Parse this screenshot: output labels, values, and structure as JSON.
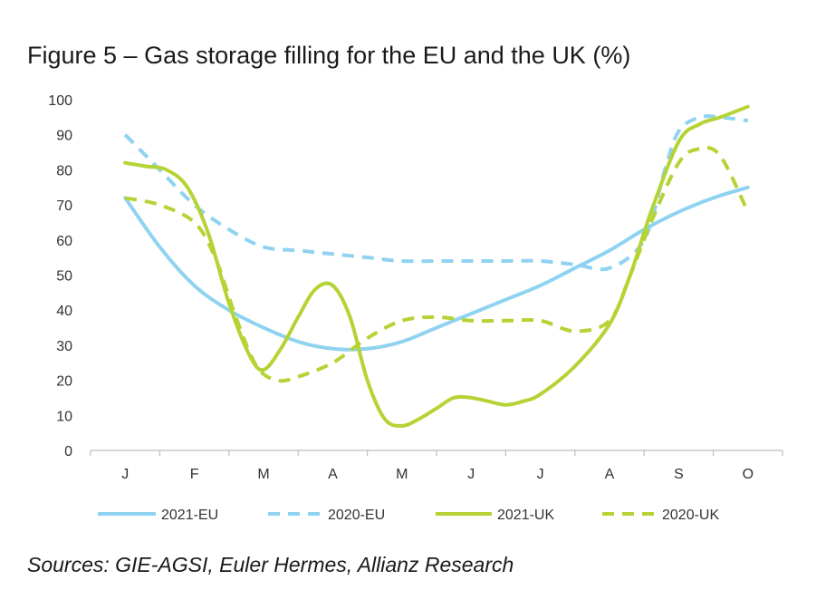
{
  "title": "Figure 5 – Gas storage filling for the EU and the UK (%)",
  "source": "Sources: GIE-AGSI, Euler Hermes, Allianz Research",
  "colors": {
    "eu": "#8fd3f0",
    "uk": "#b5d334",
    "axis": "#bdbdbd",
    "text": "#333333"
  },
  "chart_data": {
    "type": "line",
    "title": "Figure 5 – Gas storage filling for the EU and the UK (%)",
    "xlabel": "",
    "ylabel": "",
    "categories": [
      "J",
      "F",
      "M",
      "A",
      "M",
      "J",
      "J",
      "A",
      "S",
      "O"
    ],
    "ylim": [
      0,
      100
    ],
    "yticks": [
      0,
      10,
      20,
      30,
      40,
      50,
      60,
      70,
      80,
      90,
      100
    ],
    "grid": false,
    "legend": "bottom",
    "series": [
      {
        "name": "2021-EU",
        "color": "#8fd3f0",
        "dashed": false,
        "x": [
          0,
          0.5,
          1,
          1.5,
          2,
          2.5,
          3,
          3.5,
          4,
          4.5,
          5,
          5.5,
          6,
          6.5,
          7,
          7.5,
          8,
          8.5,
          9
        ],
        "y": [
          72,
          58,
          47,
          40,
          35,
          31,
          29,
          29,
          31,
          35,
          39,
          43,
          47,
          52,
          57,
          63,
          68,
          72,
          75
        ]
      },
      {
        "name": "2020-EU",
        "color": "#8fd3f0",
        "dashed": true,
        "x": [
          0,
          0.5,
          1,
          1.5,
          2,
          2.5,
          3,
          3.5,
          4,
          4.5,
          5,
          5.5,
          6,
          6.5,
          7,
          7.5,
          7.8,
          8,
          8.3,
          8.6,
          9
        ],
        "y": [
          90,
          80,
          70,
          63,
          58,
          57,
          56,
          55,
          54,
          54,
          54,
          54,
          54,
          53,
          52,
          60,
          80,
          91,
          95,
          95,
          94
        ]
      },
      {
        "name": "2021-UK",
        "color": "#b5d334",
        "dashed": false,
        "x": [
          0,
          0.3,
          0.6,
          0.9,
          1.2,
          1.5,
          1.8,
          2,
          2.25,
          2.5,
          2.75,
          3,
          3.25,
          3.5,
          3.75,
          4,
          4.25,
          4.5,
          4.75,
          5,
          5.25,
          5.5,
          5.75,
          6,
          6.5,
          7,
          7.3,
          7.6,
          8,
          8.3,
          8.6,
          9
        ],
        "y": [
          82,
          81,
          80,
          75,
          62,
          42,
          27,
          23,
          29,
          38,
          46,
          47,
          38,
          20,
          9,
          7,
          9,
          12,
          15,
          15,
          14,
          13,
          14,
          16,
          24,
          36,
          50,
          68,
          88,
          93,
          95,
          98
        ]
      },
      {
        "name": "2020-UK",
        "color": "#b5d334",
        "dashed": true,
        "x": [
          0,
          0.5,
          1,
          1.3,
          1.6,
          1.9,
          2.2,
          2.5,
          3,
          3.5,
          4,
          4.5,
          5,
          5.5,
          6,
          6.5,
          7,
          7.3,
          7.6,
          8,
          8.3,
          8.6,
          9
        ],
        "y": [
          72,
          70,
          65,
          55,
          38,
          24,
          20,
          21,
          25,
          32,
          37,
          38,
          37,
          37,
          37,
          34,
          37,
          50,
          65,
          82,
          86,
          84,
          68
        ]
      }
    ]
  }
}
